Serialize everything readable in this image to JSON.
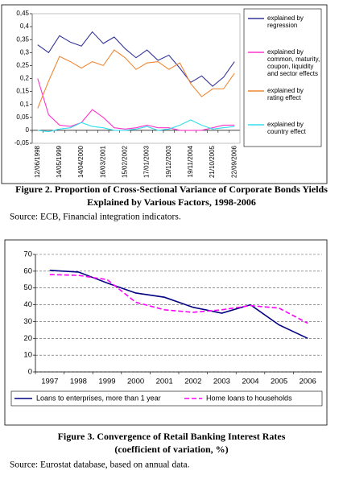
{
  "chart_data": [
    {
      "type": "line",
      "title": [
        "Figure 2. Proportion of Cross-Sectional Variance of Corporate Bonds Yields",
        "Explained by Various Factors, 1998-2006"
      ],
      "source": "Source: ECB, Financial integration indicators.",
      "categories": [
        "12/06/1998",
        null,
        "14/05/1999",
        null,
        "14/04/2000",
        null,
        "16/03/2001",
        null,
        "15/02/2002",
        null,
        "17/01/2003",
        null,
        "19/12/2003",
        null,
        "19/11/2004",
        null,
        "21/10/2005",
        null,
        "22/09/2006"
      ],
      "series": [
        {
          "name": "explained by regression",
          "color": "#333399",
          "values": [
            0.33,
            0.3,
            0.365,
            0.34,
            0.325,
            0.38,
            0.335,
            0.36,
            0.315,
            0.28,
            0.31,
            0.27,
            0.29,
            0.24,
            0.185,
            0.21,
            0.17,
            0.205,
            0.265
          ]
        },
        {
          "name": "explained by common, maturity, coupon, liquidity and sector effects",
          "color": "#ff33cc",
          "values": [
            0.2,
            0.06,
            0.02,
            0.015,
            0.03,
            0.08,
            0.05,
            0.01,
            0.005,
            0.01,
            0.02,
            0.01,
            0.01,
            0.0,
            0.0,
            0.0,
            0.01,
            0.02,
            0.02
          ]
        },
        {
          "name": "explained by rating effect",
          "color": "#ee8833",
          "values": [
            0.085,
            0.19,
            0.285,
            0.265,
            0.24,
            0.265,
            0.25,
            0.31,
            0.28,
            0.235,
            0.26,
            0.265,
            0.235,
            0.26,
            0.18,
            0.13,
            0.16,
            0.16,
            0.22
          ]
        },
        {
          "name": "explained by country effect",
          "color": "#33ddee",
          "values": [
            0.0,
            -0.005,
            0.005,
            0.01,
            0.03,
            0.015,
            0.01,
            0.0,
            0.0,
            0.005,
            0.015,
            0.0,
            0.005,
            0.02,
            0.04,
            0.02,
            0.005,
            0.01,
            0.015
          ]
        }
      ],
      "ylim": [
        -0.05,
        0.45
      ],
      "yticks": [
        {
          "value": -0.05,
          "label": "-0,05"
        },
        0,
        {
          "value": 0.05,
          "label": "0,05"
        },
        {
          "value": 0.1,
          "label": "0,1"
        },
        {
          "value": 0.15,
          "label": "0,15"
        },
        {
          "value": 0.2,
          "label": "0,2"
        },
        {
          "value": 0.25,
          "label": "0,25"
        },
        {
          "value": 0.3,
          "label": "0,3"
        },
        {
          "value": 0.35,
          "label": "0,35"
        },
        {
          "value": 0.4,
          "label": "0,4"
        },
        {
          "value": 0.45,
          "label": "0,45"
        }
      ],
      "grid": false,
      "legend": "right"
    },
    {
      "type": "line",
      "title": [
        "Figure 3. Convergence of Retail Banking Interest Rates",
        "(coefficient of variation, %)"
      ],
      "source": "Source: Eurostat database, based on annual data.",
      "categories": [
        "1997",
        "1998",
        "1999",
        "2000",
        "2001",
        "2002",
        "2003",
        "2004",
        "2005",
        "2006"
      ],
      "series": [
        {
          "name": "Loans to enterprises, more than 1 year",
          "color": "#000080",
          "line_style": "solid",
          "values": [
            60.5,
            59.5,
            53,
            47,
            44.5,
            38.5,
            35,
            40,
            28,
            20
          ]
        },
        {
          "name": "Home loans to households",
          "color": "#ff00ff",
          "line_style": "dashed",
          "values": [
            58,
            57.5,
            55,
            41.5,
            37,
            35.5,
            37,
            39.5,
            38,
            29
          ]
        }
      ],
      "ylim": [
        0,
        70
      ],
      "yticks": [
        0,
        10,
        20,
        30,
        40,
        50,
        60,
        70
      ],
      "grid": true,
      "legend": "bottom"
    }
  ]
}
